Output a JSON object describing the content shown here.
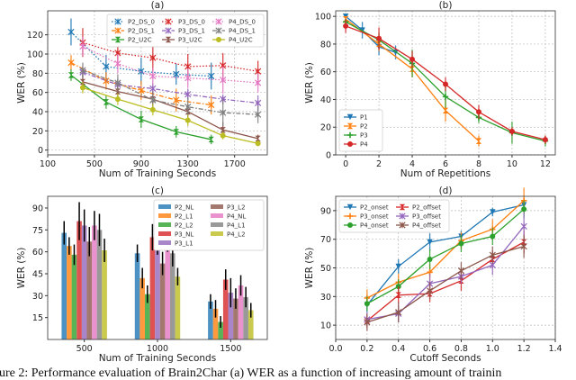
{
  "caption": "gure 2: Performance evaluation of Brain2Char (a) WER as a function of increasing amount of trainin",
  "chart_data": [
    {
      "panel": "(a)",
      "type": "line",
      "title": "(a)",
      "xlabel": "Num of Training Seconds",
      "ylabel": "WER (%)",
      "xlim": [
        100,
        1980
      ],
      "ylim": [
        -5,
        145
      ],
      "xticks": [
        100,
        500,
        900,
        1300,
        1700
      ],
      "yticks": [
        0,
        20,
        40,
        60,
        80,
        100,
        120
      ],
      "grid": true,
      "legend": "top-right",
      "legend_cols": 3,
      "series": [
        {
          "name": "P2_DS_0",
          "color": "#1f77b4",
          "style": "dotted",
          "marker": "x",
          "x": [
            300,
            600,
            900,
            1200,
            1500
          ],
          "y": [
            123,
            87,
            82,
            79,
            77
          ],
          "err": [
            14,
            12,
            14,
            11,
            14
          ]
        },
        {
          "name": "P2_DS_1",
          "color": "#ff7f0e",
          "style": "dashdot",
          "marker": "x",
          "x": [
            300,
            600,
            900,
            1200,
            1500
          ],
          "y": [
            91,
            72,
            62,
            52,
            47
          ],
          "err": [
            8,
            9,
            10,
            12,
            10
          ]
        },
        {
          "name": "P2_U2C",
          "color": "#2ca02c",
          "style": "solid",
          "marker": "bowtie",
          "x": [
            300,
            600,
            900,
            1200,
            1500
          ],
          "y": [
            78,
            50,
            32,
            19,
            11
          ],
          "err": [
            6,
            7,
            9,
            6,
            5
          ]
        },
        {
          "name": "P3_DS_0",
          "color": "#d62728",
          "style": "dotted",
          "marker": "x",
          "x": [
            400,
            700,
            1000,
            1300,
            1600,
            1900
          ],
          "y": [
            112,
            101,
            96,
            87,
            88,
            82
          ],
          "err": [
            15,
            14,
            14,
            13,
            13,
            11
          ]
        },
        {
          "name": "P3_DS_1",
          "color": "#9467bd",
          "style": "dashdot",
          "marker": "x",
          "x": [
            400,
            700,
            1000,
            1300,
            1600,
            1900
          ],
          "y": [
            81,
            68,
            64,
            58,
            53,
            49
          ],
          "err": [
            6,
            6,
            6,
            6,
            5,
            8
          ]
        },
        {
          "name": "P3_U2C",
          "color": "#8c564b",
          "style": "solid",
          "marker": "bowtie",
          "x": [
            400,
            700,
            1000,
            1300,
            1600,
            1900
          ],
          "y": [
            71,
            61,
            53,
            40,
            21,
            12
          ],
          "err": [
            8,
            7,
            8,
            8,
            8,
            4
          ]
        },
        {
          "name": "P4_DS_0",
          "color": "#e377c2",
          "style": "dotted",
          "marker": "x",
          "x": [
            400,
            700,
            1000,
            1300,
            1600,
            1900
          ],
          "y": [
            108,
            90,
            77,
            75,
            73,
            70
          ],
          "err": [
            10,
            10,
            9,
            10,
            14,
            10
          ]
        },
        {
          "name": "P4_DS_1",
          "color": "#7f7f7f",
          "style": "dashdot",
          "marker": "x",
          "x": [
            400,
            700,
            1000,
            1300,
            1600,
            1900
          ],
          "y": [
            83,
            70,
            52,
            45,
            39,
            37
          ],
          "err": [
            8,
            9,
            9,
            10,
            14,
            9
          ]
        },
        {
          "name": "P4_U2C",
          "color": "#bcbd22",
          "style": "solid",
          "marker": "circle",
          "x": [
            400,
            700,
            1000,
            1300,
            1600,
            1900
          ],
          "y": [
            65,
            53,
            42,
            31,
            15,
            7
          ],
          "err": [
            6,
            6,
            6,
            6,
            4,
            3
          ]
        }
      ]
    },
    {
      "panel": "(b)",
      "type": "line",
      "title": "(b)",
      "xlabel": "Num of Repetitions",
      "ylabel": "WER (%)",
      "xlim": [
        -0.6,
        12.6
      ],
      "ylim": [
        0,
        104
      ],
      "xticks": [
        0,
        2,
        4,
        6,
        8,
        10,
        12
      ],
      "yticks": [
        0,
        20,
        40,
        60,
        80,
        100
      ],
      "grid": true,
      "legend": "bottom-left",
      "legend_cols": 1,
      "series": [
        {
          "name": "P1",
          "color": "#1f77b4",
          "style": "solid",
          "marker": "triangle-down",
          "x": [
            0,
            1,
            2,
            3
          ],
          "y": [
            100,
            90,
            78,
            74
          ],
          "err": [
            2,
            6,
            6,
            5
          ]
        },
        {
          "name": "P2",
          "color": "#ff7f0e",
          "style": "solid",
          "marker": "bowtie",
          "x": [
            0,
            2,
            4,
            6,
            8
          ],
          "y": [
            98,
            80,
            62,
            32,
            10
          ],
          "err": [
            2,
            5,
            6,
            8,
            4
          ]
        },
        {
          "name": "P3",
          "color": "#2ca02c",
          "style": "solid",
          "marker": "plus",
          "x": [
            0,
            2,
            4,
            6,
            8,
            10,
            12
          ],
          "y": [
            96,
            83,
            66,
            42,
            27,
            16,
            10
          ],
          "err": [
            2,
            5,
            10,
            8,
            4,
            8,
            4
          ]
        },
        {
          "name": "P4",
          "color": "#d62728",
          "style": "solid",
          "marker": "circle",
          "x": [
            0,
            2,
            4,
            6,
            8,
            10,
            12
          ],
          "y": [
            93,
            84,
            69,
            51,
            31,
            17,
            11
          ],
          "err": [
            5,
            8,
            6,
            5,
            5,
            3,
            3
          ]
        }
      ]
    },
    {
      "panel": "(c)",
      "type": "bar",
      "title": "(c)",
      "xlabel": "Num of Training Seconds",
      "ylabel": "WER (%)",
      "ylim": [
        0,
        98
      ],
      "yticks": [
        15,
        30,
        45,
        60,
        75,
        90
      ],
      "categories": [
        "500",
        "1000",
        "1500"
      ],
      "grid": false,
      "legend": "top-right",
      "legend_cols": 2,
      "series": [
        {
          "name": "P2_NL",
          "color": "#1f77b4",
          "values": [
            73,
            59,
            26
          ],
          "err": [
            8,
            6,
            5
          ]
        },
        {
          "name": "P2_L1",
          "color": "#ff7f0e",
          "values": [
            64,
            42,
            21
          ],
          "err": [
            6,
            7,
            6
          ]
        },
        {
          "name": "P2_L2",
          "color": "#2ca02c",
          "values": [
            58,
            31,
            12
          ],
          "err": [
            7,
            6,
            4
          ]
        },
        {
          "name": "P3_NL",
          "color": "#d62728",
          "values": [
            81,
            70,
            41
          ],
          "err": [
            13,
            9,
            7
          ]
        },
        {
          "name": "P3_L1",
          "color": "#9467bd",
          "values": [
            78,
            65,
            32
          ],
          "err": [
            11,
            7,
            10
          ]
        },
        {
          "name": "P3_L2",
          "color": "#8c564b",
          "values": [
            67,
            52,
            28
          ],
          "err": [
            10,
            8,
            7
          ]
        },
        {
          "name": "P4_NL",
          "color": "#e377c2",
          "values": [
            78,
            68,
            37
          ],
          "err": [
            10,
            8,
            7
          ]
        },
        {
          "name": "P4_L1",
          "color": "#7f7f7f",
          "values": [
            75,
            59,
            29
          ],
          "err": [
            11,
            9,
            7
          ]
        },
        {
          "name": "P4_L2",
          "color": "#bcbd22",
          "values": [
            61,
            43,
            20
          ],
          "err": [
            8,
            6,
            5
          ]
        }
      ]
    },
    {
      "panel": "(d)",
      "type": "line",
      "title": "(d)",
      "xlabel": "Cutoff Seconds",
      "ylabel": "WER (%)",
      "xlim": [
        0,
        1.4
      ],
      "ylim": [
        0,
        100
      ],
      "xticks": [
        0.0,
        0.2,
        0.4,
        0.6,
        0.8,
        1.0,
        1.2,
        1.4
      ],
      "yticks": [
        10,
        30,
        50,
        70,
        90
      ],
      "grid": true,
      "legend": "top-left",
      "legend_cols": 2,
      "series": [
        {
          "name": "P2_onset",
          "color": "#1f77b4",
          "style": "solid",
          "marker": "triangle-down",
          "x": [
            0.2,
            0.4,
            0.6,
            0.8,
            1.0,
            1.2
          ],
          "y": [
            24,
            51,
            68,
            72,
            89,
            94
          ],
          "err": [
            5,
            5,
            6,
            4,
            3,
            3
          ]
        },
        {
          "name": "P3_onset",
          "color": "#ff7f0e",
          "style": "solid",
          "marker": "plus",
          "x": [
            0.2,
            0.4,
            0.6,
            0.8,
            1.0,
            1.2
          ],
          "y": [
            29,
            40,
            47,
            69,
            77,
            97
          ],
          "err": [
            6,
            6,
            6,
            6,
            7,
            9
          ]
        },
        {
          "name": "P4_onset",
          "color": "#2ca02c",
          "style": "solid",
          "marker": "circle",
          "x": [
            0.2,
            0.4,
            0.6,
            0.8,
            1.0,
            1.2
          ],
          "y": [
            25,
            37,
            56,
            67,
            72,
            91
          ],
          "err": [
            5,
            5,
            7,
            6,
            6,
            6
          ]
        },
        {
          "name": "P2_offset",
          "color": "#d62728",
          "style": "solid",
          "marker": "bowtie",
          "x": [
            0.2,
            0.4,
            0.6,
            0.8,
            1.0,
            1.2
          ],
          "y": [
            13,
            31,
            32,
            41,
            56,
            68
          ],
          "err": [
            5,
            6,
            6,
            7,
            6,
            8
          ]
        },
        {
          "name": "P3_offset",
          "color": "#9467bd",
          "style": "solid",
          "marker": "x",
          "x": [
            0.2,
            0.4,
            0.6,
            0.8,
            1.0,
            1.2
          ],
          "y": [
            14,
            18,
            39,
            44,
            52,
            79
          ],
          "err": [
            5,
            6,
            7,
            5,
            7,
            10
          ]
        },
        {
          "name": "P4_offset",
          "color": "#8c564b",
          "style": "solid",
          "marker": "x",
          "x": [
            0.2,
            0.4,
            0.6,
            0.8,
            1.0,
            1.2
          ],
          "y": [
            12,
            19,
            34,
            48,
            59,
            65
          ],
          "err": [
            6,
            7,
            6,
            6,
            6,
            8
          ]
        }
      ]
    }
  ]
}
